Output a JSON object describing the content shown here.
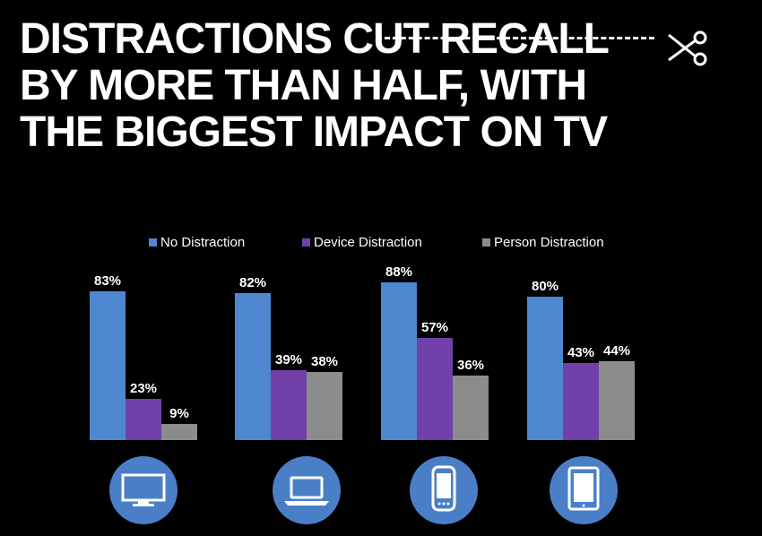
{
  "headline": {
    "line1": "DISTRACTIONS CUT RECALL",
    "line2": "BY MORE THAN HALF, WITH",
    "line3": "THE BIGGEST IMPACT ON TV"
  },
  "colors": {
    "background": "#000000",
    "no_distraction": "#4f86d0",
    "device_distraction": "#7040a8",
    "person_distraction": "#8c8c8c",
    "icon_circle": "#4a7fc8"
  },
  "icons": [
    "tv-icon",
    "laptop-icon",
    "smartphone-icon",
    "tablet-icon"
  ],
  "chart_data": {
    "type": "bar",
    "title": "",
    "xlabel": "",
    "ylabel": "",
    "ylim": [
      0,
      100
    ],
    "grid": false,
    "legend_position": "top",
    "categories": [
      "",
      "",
      "",
      ""
    ],
    "series": [
      {
        "name": "No Distraction",
        "values": [
          83,
          82,
          88,
          80
        ],
        "labels": [
          "83%",
          "82%",
          "88%",
          "80%"
        ]
      },
      {
        "name": "Device Distraction",
        "values": [
          23,
          39,
          57,
          43
        ],
        "labels": [
          "23%",
          "39%",
          "57%",
          "43%"
        ]
      },
      {
        "name": "Person Distraction",
        "values": [
          9,
          38,
          36,
          44
        ],
        "labels": [
          "9%",
          "38%",
          "36%",
          "44%"
        ]
      }
    ]
  }
}
